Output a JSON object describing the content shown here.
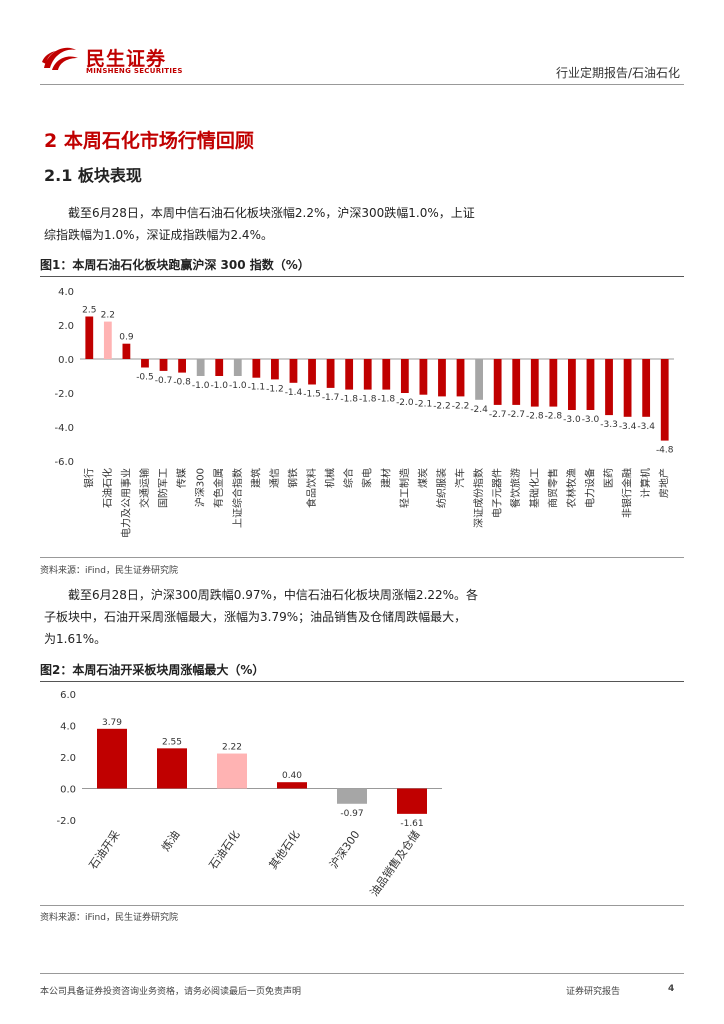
{
  "header": {
    "brand_cn": "民生证券",
    "brand_en": "MINSHENG SECURITIES",
    "report_type": "行业定期报告/石油石化"
  },
  "section": {
    "title": "2 本周石化市场行情回顾",
    "subtitle": "2.1 板块表现"
  },
  "paragraph1": [
    "截至6月28日，本周中信石油石化板块涨幅2.2%，沪深300跌幅1.0%，上证",
    "综指跌幅为1.0%，深证成指跌幅为2.4%。"
  ],
  "figure1": {
    "title": "图1：本周石油石化板块跑赢沪深 300 指数（%）",
    "source": "资料来源：iFind，民生证券研究院"
  },
  "paragraph2": [
    "截至6月28日，沪深300周跌幅0.97%，中信石油石化板块周涨幅2.22%。各",
    "子板块中，石油开采周涨幅最大，涨幅为3.79%；油品销售及仓储周跌幅最大，",
    "为1.61%。"
  ],
  "figure2": {
    "title": "图2：本周石油开采板块周涨幅最大（%）",
    "source": "资料来源：iFind，民生证券研究院"
  },
  "colors": {
    "brand_red": "#c00000",
    "highlight_pink": "#ffb3b3",
    "index_gray": "#a6a6a6"
  },
  "chart_data": [
    {
      "type": "bar",
      "title": "图1：本周石油石化板块跑赢沪深 300 指数（%）",
      "ylim": [
        -6.0,
        4.0
      ],
      "yticks": [
        "4.0",
        "2.0",
        "0.0",
        "-2.0",
        "-4.0",
        "-6.0"
      ],
      "ytick_values": [
        4,
        2,
        0,
        -2,
        -4,
        -6
      ],
      "grid": false,
      "legend": "none",
      "categories": [
        "银行",
        "石油石化",
        "电力及公用事业",
        "交通运输",
        "国防军工",
        "传媒",
        "沪深300",
        "有色金属",
        "上证综合指数",
        "建筑",
        "通信",
        "钢铁",
        "食品饮料",
        "机械",
        "综合",
        "家电",
        "建材",
        "轻工制造",
        "煤炭",
        "纺织服装",
        "汽车",
        "深证成份指数",
        "电子元器件",
        "餐饮旅游",
        "基础化工",
        "商贸零售",
        "农林牧渔",
        "电力设备",
        "医药",
        "非银行金融",
        "计算机",
        "房地产"
      ],
      "values": [
        2.5,
        2.2,
        0.9,
        -0.5,
        -0.7,
        -0.8,
        -1.0,
        -1.0,
        -1.0,
        -1.1,
        -1.2,
        -1.4,
        -1.5,
        -1.7,
        -1.8,
        -1.8,
        -1.8,
        -2.0,
        -2.1,
        -2.2,
        -2.2,
        -2.4,
        -2.7,
        -2.7,
        -2.8,
        -2.8,
        -3.0,
        -3.0,
        -3.3,
        -3.4,
        -3.4,
        -4.8
      ],
      "value_labels": [
        "2.5",
        "2.2",
        "0.9",
        "-0.5",
        "-0.7",
        "-0.8",
        "-1.0",
        "-1.0",
        "-1.0",
        "-1.1",
        "-1.2",
        "-1.4",
        "-1.5",
        "-1.7",
        "-1.8",
        "-1.8",
        "-1.8",
        "-2.0",
        "-2.1",
        "-2.2",
        "-2.2",
        "-2.4",
        "-2.7",
        "-2.7",
        "-2.8",
        "-2.8",
        "-3.0",
        "-3.0",
        "-3.3",
        "-3.4",
        "-3.4",
        "-4.8"
      ],
      "colors": [
        "#c00000",
        "#ffb3b3",
        "#c00000",
        "#c00000",
        "#c00000",
        "#c00000",
        "#a6a6a6",
        "#c00000",
        "#a6a6a6",
        "#c00000",
        "#c00000",
        "#c00000",
        "#c00000",
        "#c00000",
        "#c00000",
        "#c00000",
        "#c00000",
        "#c00000",
        "#c00000",
        "#c00000",
        "#c00000",
        "#a6a6a6",
        "#c00000",
        "#c00000",
        "#c00000",
        "#c00000",
        "#c00000",
        "#c00000",
        "#c00000",
        "#c00000",
        "#c00000",
        "#c00000"
      ]
    },
    {
      "type": "bar",
      "title": "图2：本周石油开采板块周涨幅最大（%）",
      "ylim": [
        -2.0,
        6.0
      ],
      "yticks": [
        "6.0",
        "4.0",
        "2.0",
        "0.0",
        "-2.0"
      ],
      "ytick_values": [
        6,
        4,
        2,
        0,
        -2
      ],
      "grid": false,
      "legend": "none",
      "categories": [
        "石油开采",
        "炼油",
        "石油石化",
        "其他石化",
        "沪深300",
        "油品销售及仓储"
      ],
      "values": [
        3.79,
        2.55,
        2.22,
        0.4,
        -0.97,
        -1.61
      ],
      "value_labels": [
        "3.79",
        "2.55",
        "2.22",
        "0.40",
        "-0.97",
        "-1.61"
      ],
      "colors": [
        "#c00000",
        "#c00000",
        "#ffb3b3",
        "#c00000",
        "#a6a6a6",
        "#c00000"
      ]
    }
  ],
  "footer": {
    "disclaimer": "本公司具备证券投资咨询业务资格，请务必阅读最后一页免责声明",
    "report_label": "证券研究报告",
    "page": "4"
  }
}
